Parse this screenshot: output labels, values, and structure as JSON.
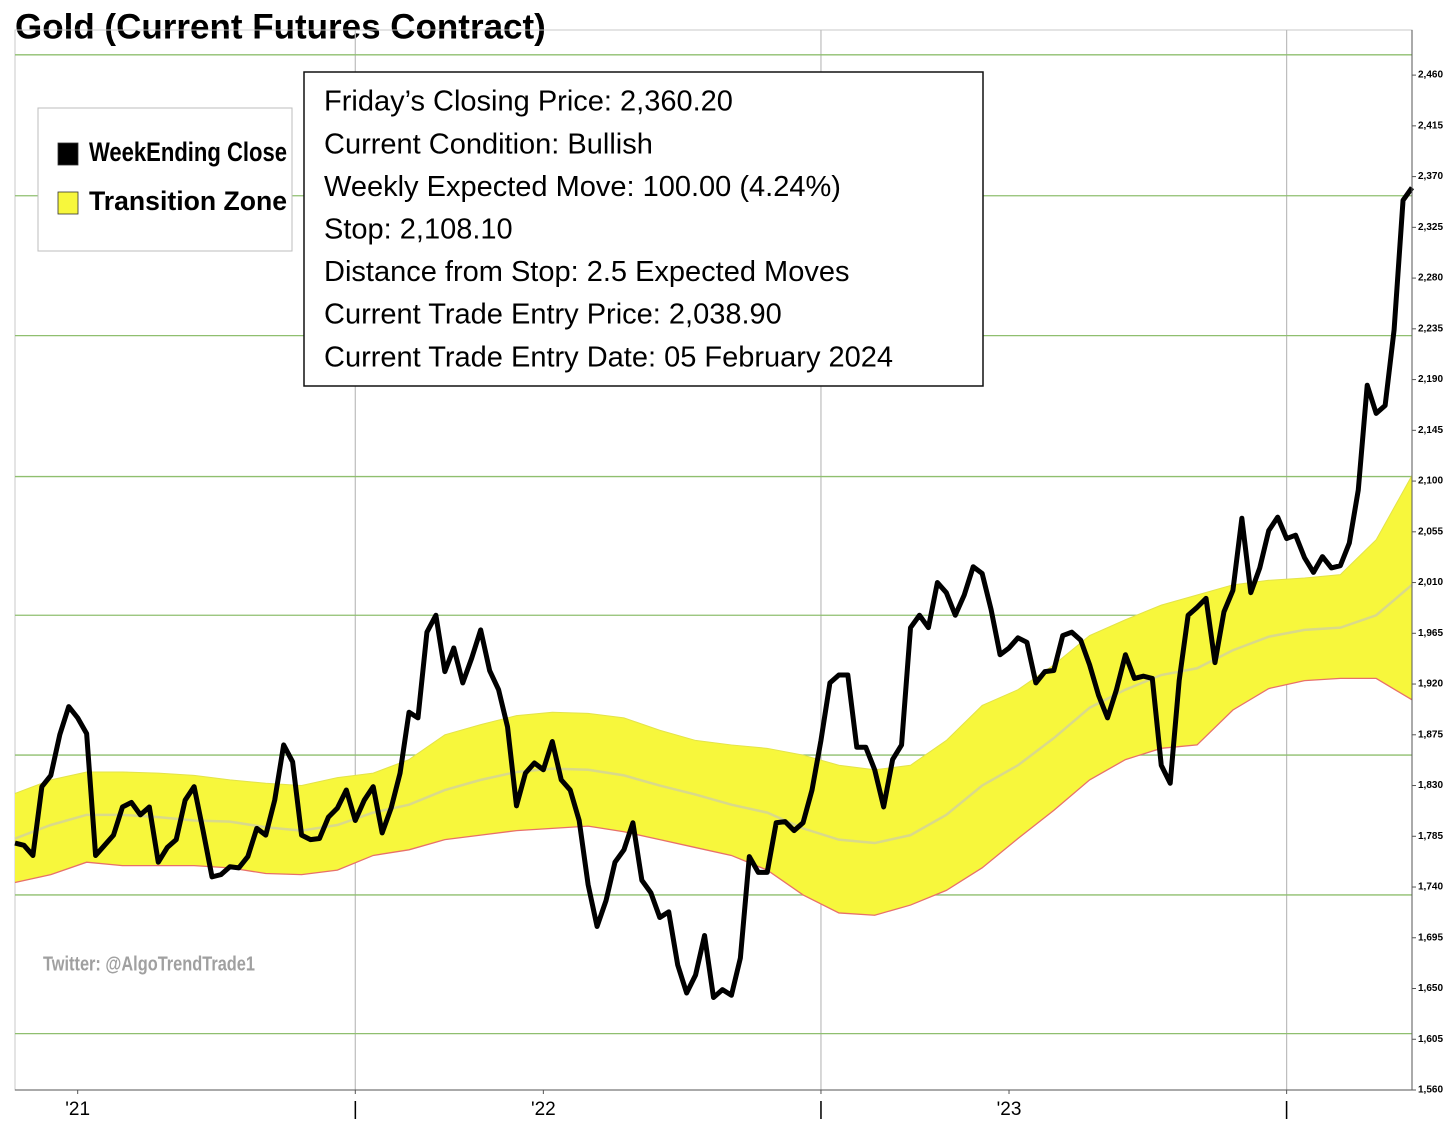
{
  "chart_data": {
    "type": "line",
    "title": "Gold (Current Futures Contract)",
    "info_lines": [
      "Friday’s Closing Price: 2,360.20",
      "Current Condition: Bullish",
      "Weekly Expected Move: 100.00 (4.24%)",
      "Stop: 2,108.10",
      "Distance from Stop: 2.5 Expected Moves",
      "Current Trade Entry Price: 2,038.90",
      "Current Trade Entry Date: 05 February 2024"
    ],
    "watermark": "Twitter: @AlgoTrendTrade1",
    "xlim": [
      0,
      156
    ],
    "xticks": [
      {
        "value": 7,
        "label": "'21"
      },
      {
        "value": 38,
        "label": "|"
      },
      {
        "value": 59,
        "label": "'22"
      },
      {
        "value": 90,
        "label": "|"
      },
      {
        "value": 111,
        "label": "'23"
      },
      {
        "value": 142,
        "label": "|"
      }
    ],
    "xgrid": [
      38,
      90,
      142
    ],
    "ylim": [
      1560,
      2500
    ],
    "yticks": [
      {
        "value": 1560,
        "label": "1,560"
      },
      {
        "value": 1605,
        "label": "1,605"
      },
      {
        "value": 1650,
        "label": "1,650"
      },
      {
        "value": 1695,
        "label": "1,695"
      },
      {
        "value": 1740,
        "label": "1,740"
      },
      {
        "value": 1785,
        "label": "1,785"
      },
      {
        "value": 1830,
        "label": "1,830"
      },
      {
        "value": 1875,
        "label": "1,875"
      },
      {
        "value": 1920,
        "label": "1,920"
      },
      {
        "value": 1965,
        "label": "1,965"
      },
      {
        "value": 2010,
        "label": "2,010"
      },
      {
        "value": 2055,
        "label": "2,055"
      },
      {
        "value": 2100,
        "label": "2,100"
      },
      {
        "value": 2145,
        "label": "2,145"
      },
      {
        "value": 2190,
        "label": "2,190"
      },
      {
        "value": 2235,
        "label": "2,235"
      },
      {
        "value": 2280,
        "label": "2,280"
      },
      {
        "value": 2325,
        "label": "2,325"
      },
      {
        "value": 2370,
        "label": "2,370"
      },
      {
        "value": 2415,
        "label": "2,415"
      },
      {
        "value": 2460,
        "label": "2,460"
      }
    ],
    "hgrid": [
      1610,
      1733,
      1857,
      1981,
      2104,
      2229,
      2353,
      2478
    ],
    "grid_color": "#8fbf6f",
    "legend_position": "upper left",
    "series": [
      {
        "name": "WeekEnding Close",
        "color": "#000000",
        "values": [
          1779,
          1777,
          1768,
          1829,
          1839,
          1875,
          1900,
          1890,
          1876,
          1768,
          1777,
          1786,
          1811,
          1815,
          1804,
          1811,
          1762,
          1775,
          1782,
          1817,
          1829,
          1790,
          1749,
          1751,
          1758,
          1757,
          1767,
          1792,
          1786,
          1817,
          1866,
          1851,
          1786,
          1782,
          1783,
          1802,
          1810,
          1826,
          1799,
          1817,
          1829,
          1788,
          1810,
          1841,
          1895,
          1890,
          1966,
          1981,
          1931,
          1952,
          1921,
          1943,
          1968,
          1932,
          1915,
          1882,
          1812,
          1841,
          1850,
          1844,
          1869,
          1835,
          1826,
          1799,
          1742,
          1705,
          1728,
          1762,
          1773,
          1797,
          1746,
          1735,
          1713,
          1718,
          1671,
          1646,
          1662,
          1697,
          1642,
          1649,
          1644,
          1677,
          1767,
          1753,
          1753,
          1797,
          1798,
          1790,
          1797,
          1826,
          1870,
          1921,
          1928,
          1928,
          1864,
          1864,
          1844,
          1811,
          1853,
          1866,
          1970,
          1981,
          1970,
          2010,
          2001,
          1981,
          1999,
          2024,
          2018,
          1986,
          1946,
          1952,
          1961,
          1957,
          1921,
          1931,
          1932,
          1963,
          1966,
          1959,
          1937,
          1910,
          1890,
          1915,
          1946,
          1925,
          1927,
          1925,
          1848,
          1832,
          1923,
          1981,
          1988,
          1996,
          1939,
          1984,
          2003,
          2067,
          2001,
          2023,
          2056,
          2068,
          2049,
          2052,
          2032,
          2019,
          2033,
          2023,
          2025,
          2045,
          2092,
          2185,
          2160,
          2167,
          2234,
          2349,
          2360.2
        ]
      },
      {
        "name": "Transition Zone",
        "color": "#f7f73c",
        "edge_color": "#e8706a",
        "mid_color": "#d9d98a",
        "x": [
          0,
          4,
          8,
          12,
          16,
          20,
          24,
          28,
          32,
          36,
          40,
          44,
          48,
          52,
          56,
          60,
          64,
          68,
          72,
          76,
          80,
          84,
          88,
          92,
          96,
          100,
          104,
          108,
          112,
          116,
          120,
          124,
          128,
          132,
          136,
          140,
          144,
          148,
          152,
          156
        ],
        "upper": [
          1823,
          1835,
          1842,
          1842,
          1841,
          1839,
          1835,
          1832,
          1830,
          1837,
          1841,
          1853,
          1875,
          1884,
          1892,
          1895,
          1894,
          1890,
          1879,
          1870,
          1866,
          1863,
          1857,
          1848,
          1844,
          1848,
          1870,
          1901,
          1915,
          1937,
          1963,
          1977,
          1990,
          1999,
          2008,
          2012,
          2014,
          2017,
          2048,
          2105
        ],
        "mid": [
          1783,
          1795,
          1804,
          1804,
          1802,
          1799,
          1798,
          1793,
          1790,
          1795,
          1806,
          1813,
          1826,
          1835,
          1842,
          1845,
          1844,
          1839,
          1830,
          1822,
          1813,
          1806,
          1792,
          1782,
          1779,
          1786,
          1804,
          1830,
          1848,
          1872,
          1899,
          1915,
          1928,
          1934,
          1950,
          1962,
          1968,
          1970,
          1981,
          2008
        ],
        "lower": [
          1744,
          1751,
          1762,
          1759,
          1759,
          1759,
          1757,
          1752,
          1751,
          1755,
          1768,
          1773,
          1782,
          1786,
          1790,
          1792,
          1794,
          1789,
          1782,
          1775,
          1768,
          1755,
          1733,
          1717,
          1715,
          1724,
          1737,
          1757,
          1783,
          1808,
          1835,
          1853,
          1863,
          1866,
          1897,
          1916,
          1923,
          1925,
          1925,
          1906
        ]
      }
    ]
  }
}
